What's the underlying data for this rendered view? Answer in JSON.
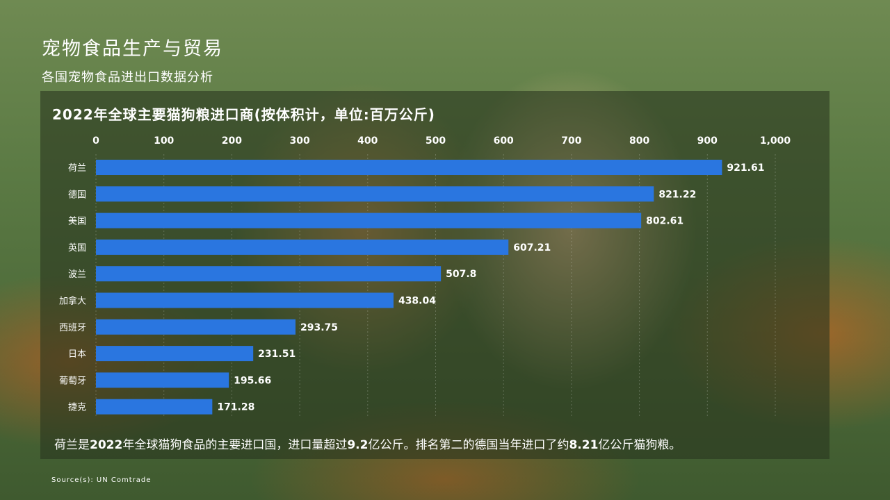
{
  "header": {
    "title": "宠物食品生产与贸易",
    "subtitle": "各国宠物食品进出口数据分析"
  },
  "chart_data": {
    "type": "bar",
    "orientation": "horizontal",
    "title": "2022年全球主要猫狗粮进口商(按体积计，单位:百万公斤)",
    "categories": [
      "荷兰",
      "德国",
      "美国",
      "英国",
      "波兰",
      "加拿大",
      "西班牙",
      "日本",
      "葡萄牙",
      "捷克"
    ],
    "values": [
      921.61,
      821.22,
      802.61,
      607.21,
      507.8,
      438.04,
      293.75,
      231.51,
      195.66,
      171.28
    ],
    "value_labels": [
      "921.61",
      "821.22",
      "802.61",
      "607.21",
      "507.8",
      "438.04",
      "293.75",
      "231.51",
      "195.66",
      "171.28"
    ],
    "xlim": [
      0,
      1000
    ],
    "x_ticks": [
      0,
      100,
      200,
      300,
      400,
      500,
      600,
      700,
      800,
      900,
      1000
    ],
    "x_tick_labels": [
      "0",
      "100",
      "200",
      "300",
      "400",
      "500",
      "600",
      "700",
      "800",
      "900",
      "1,000"
    ],
    "axis_position": "top",
    "grid": true,
    "bar_color": "#2a76e0"
  },
  "footnote": {
    "parts": [
      {
        "text": "荷兰是",
        "bold": false
      },
      {
        "text": "2022",
        "bold": true
      },
      {
        "text": "年全球猫狗食品的主要进口国，进口量超过",
        "bold": false
      },
      {
        "text": "9.2",
        "bold": true
      },
      {
        "text": "亿公斤。排名第二的德国当年进口了约",
        "bold": false
      },
      {
        "text": "8.21",
        "bold": true
      },
      {
        "text": "亿公斤猫狗粮。",
        "bold": false
      }
    ]
  },
  "source": "Source(s): UN Comtrade"
}
